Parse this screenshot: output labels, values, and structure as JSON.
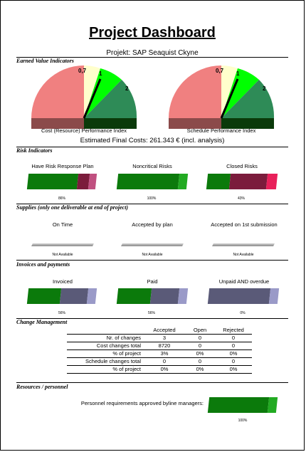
{
  "header": {
    "title": "Project Dashboard",
    "subtitle": "Projekt: SAP Seaquist Ckyne"
  },
  "sections": {
    "earned_value": "Earned Value Indicators",
    "risk": "Risk Indicators",
    "supplies": "Supplies (only one deliverable at end of project)",
    "invoices": "Invoices and payments",
    "change": "Change Management",
    "resources": "Resources / personnel"
  },
  "gauges": [
    {
      "caption": "Cost (Resource) Performance Index",
      "ticks": [
        "0,7",
        "1",
        "2"
      ],
      "value": 1.0
    },
    {
      "caption": "Schedule Performance Index",
      "ticks": [
        "0,7",
        "1",
        "2"
      ],
      "value": 1.0
    }
  ],
  "estimated_final_costs": "Estimated Final Costs: 261.343 € (incl. analysis)",
  "risk_indicators": [
    {
      "label": "Have Risk Response Plan",
      "percent_label": "86%",
      "fraction": 0.86
    },
    {
      "label": "Noncritical Risks",
      "percent_label": "100%",
      "fraction": 1.0
    },
    {
      "label": "Closed Risks",
      "percent_label": "43%",
      "fraction": 0.43
    }
  ],
  "supplies": [
    {
      "label": "On Time",
      "status": "Not Available"
    },
    {
      "label": "Accepted by plan",
      "status": "Not Available"
    },
    {
      "label": "Accepted on 1st submission",
      "status": "Not Available"
    }
  ],
  "invoices": [
    {
      "label": "Invoiced",
      "percent_label": "56%",
      "fraction": 0.56
    },
    {
      "label": "Paid",
      "percent_label": "56%",
      "fraction": 0.56
    },
    {
      "label": "Unpaid AND overdue",
      "percent_label": "0%",
      "fraction": 0.0
    }
  ],
  "change_management": {
    "headers": [
      "",
      "Accepted",
      "Open",
      "Rejected"
    ],
    "rows": [
      [
        "Nr. of changes",
        "3",
        "0",
        "0"
      ],
      [
        "Cost changes total",
        "8720",
        "0",
        "0"
      ],
      [
        "% of project",
        "3%",
        "0%",
        "0%"
      ],
      [
        "Schedule changes total",
        "0",
        "0",
        "0"
      ],
      [
        "% of project",
        "0%",
        "0%",
        "0%"
      ]
    ]
  },
  "resources": {
    "label": "Personnel requirements approved byline managers:",
    "percent_label": "100%",
    "fraction": 1.0
  },
  "colors": {
    "gauge_red": "#f08080",
    "gauge_cream": "#ffffcc",
    "gauge_lime": "#00ff00",
    "gauge_green": "#2e8b57",
    "bar_green": "#0b7a0b",
    "bar_maroon": "#7b1c3c",
    "bar_pink": "#e8205a",
    "bar_slate": "#5a5a78",
    "bar_lavender": "#9a9ac8"
  }
}
